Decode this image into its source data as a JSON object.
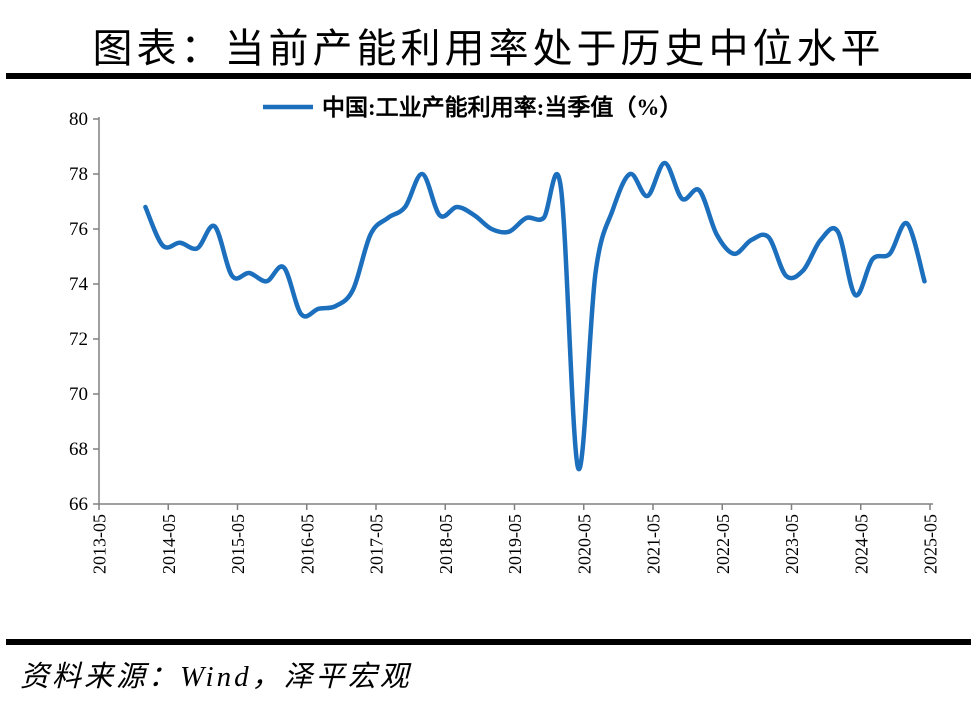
{
  "title": "图表：当前产能利用率处于历史中位水平",
  "legend": {
    "label": "中国:工业产能利用率:当季值（%）"
  },
  "footer": {
    "source": "资料来源：Wind，泽平宏观"
  },
  "colors": {
    "line": "#1c6fbd",
    "axis": "#808080",
    "rule": "#000000",
    "text": "#000000"
  },
  "chart_data": {
    "type": "line",
    "title": "图表：当前产能利用率处于历史中位水平",
    "series_name": "中国:工业产能利用率:当季值（%）",
    "unit": "%",
    "grid": false,
    "legend_position": "top-center",
    "ylim": [
      66,
      80
    ],
    "y_ticks": [
      66,
      68,
      70,
      72,
      74,
      76,
      78,
      80
    ],
    "x_tick_labels": [
      "2013-05",
      "2014-05",
      "2015-05",
      "2016-05",
      "2017-05",
      "2018-05",
      "2019-05",
      "2020-05",
      "2021-05",
      "2022-05",
      "2023-05",
      "2024-05",
      "2025-05"
    ],
    "x": [
      "2013-12",
      "2014-03",
      "2014-06",
      "2014-09",
      "2014-12",
      "2015-03",
      "2015-06",
      "2015-09",
      "2015-12",
      "2016-03",
      "2016-06",
      "2016-09",
      "2016-12",
      "2017-03",
      "2017-06",
      "2017-09",
      "2017-12",
      "2018-03",
      "2018-06",
      "2018-09",
      "2018-12",
      "2019-03",
      "2019-06",
      "2019-09",
      "2019-12",
      "2020-03",
      "2020-06",
      "2020-09",
      "2020-12",
      "2021-03",
      "2021-06",
      "2021-09",
      "2021-12",
      "2022-03",
      "2022-06",
      "2022-09",
      "2022-12",
      "2023-03",
      "2023-06",
      "2023-09",
      "2023-12",
      "2024-03",
      "2024-06",
      "2024-09",
      "2024-12",
      "2025-03"
    ],
    "values": [
      76.8,
      75.4,
      75.5,
      75.3,
      76.1,
      74.3,
      74.4,
      74.1,
      74.6,
      72.9,
      73.1,
      73.2,
      73.8,
      75.8,
      76.4,
      76.8,
      78.0,
      76.5,
      76.8,
      76.5,
      76.0,
      75.9,
      76.4,
      76.4,
      77.5,
      67.3,
      74.4,
      76.7,
      78.0,
      77.2,
      78.4,
      77.1,
      77.4,
      75.8,
      75.1,
      75.6,
      75.7,
      74.3,
      74.5,
      75.6,
      75.9,
      73.6,
      74.9,
      75.1,
      76.2,
      74.1
    ]
  }
}
